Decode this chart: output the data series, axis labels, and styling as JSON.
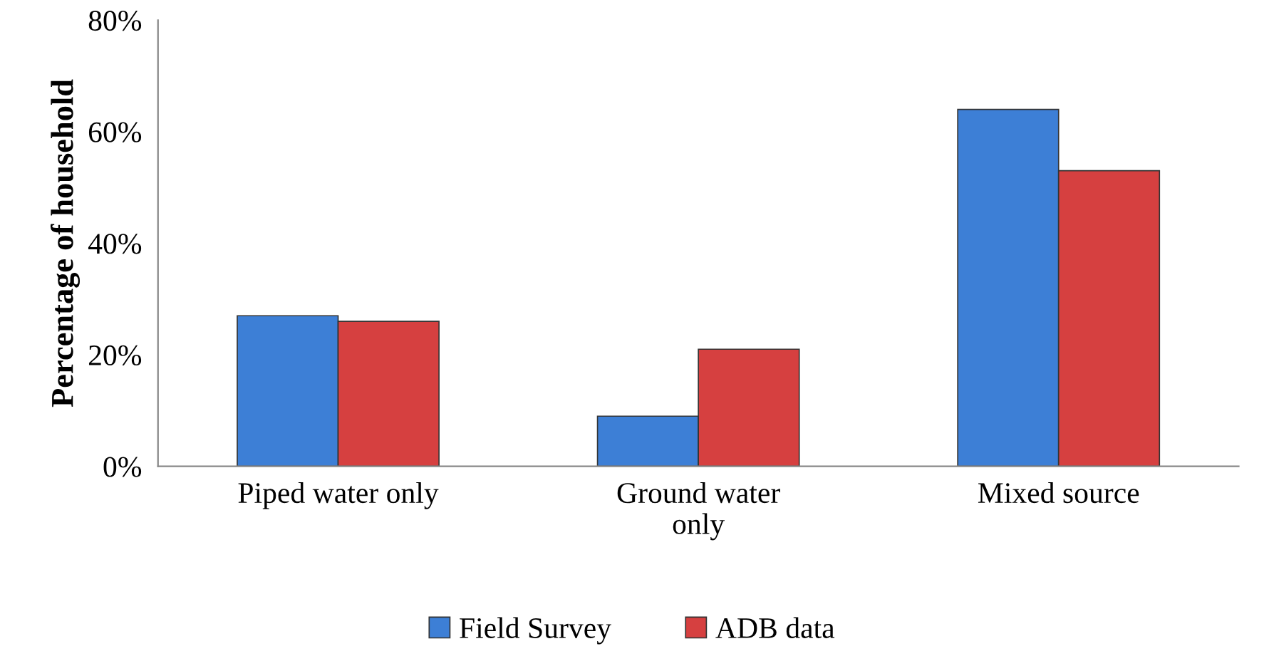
{
  "chart_data": {
    "type": "bar",
    "ylabel": "Percentage of household",
    "categories": [
      "Piped water only",
      "Ground water\nonly",
      "Mixed source"
    ],
    "series": [
      {
        "name": "Field Survey",
        "color": "#3d7fd6",
        "values": [
          27,
          9,
          64
        ]
      },
      {
        "name": "ADB data",
        "color": "#d64040",
        "values": [
          26,
          21,
          53
        ]
      }
    ],
    "ylim": [
      0,
      80
    ],
    "yticks": [
      {
        "value": 0,
        "label": "0%"
      },
      {
        "value": 20,
        "label": "20%"
      },
      {
        "value": 40,
        "label": "40%"
      },
      {
        "value": 60,
        "label": "60%"
      },
      {
        "value": 80,
        "label": "80%"
      }
    ],
    "grid": false,
    "legend": "bottom"
  }
}
